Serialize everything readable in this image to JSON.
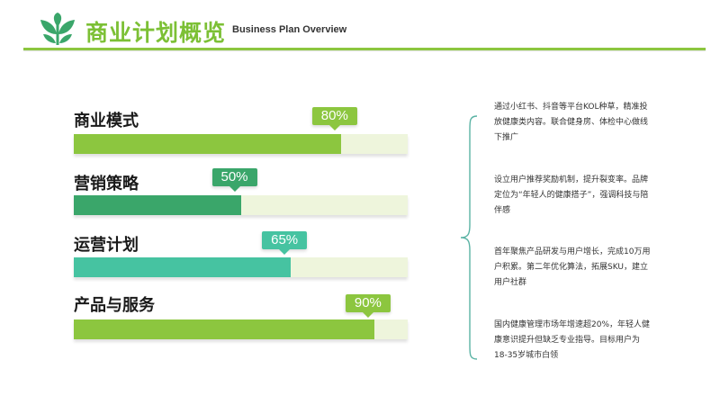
{
  "header": {
    "title_cn": "商业计划概览",
    "title_en": "Business Plan Overview",
    "accent": "#8cc63f",
    "logo_icon": "leaf-plant-icon"
  },
  "rows": [
    {
      "label": "商业模式",
      "value": 80,
      "value_label": "80%",
      "color": "#8cc63f"
    },
    {
      "label": "营销策略",
      "value": 50,
      "value_label": "50%",
      "color": "#3aa66a"
    },
    {
      "label": "运营计划",
      "value": 65,
      "value_label": "65%",
      "color": "#46c3a1"
    },
    {
      "label": "产品与服务",
      "value": 90,
      "value_label": "90%",
      "color": "#8cc63f"
    }
  ],
  "descriptions": [
    "通过小红书、抖音等平台KOL种草，精准投放健康类内容。联合健身房、体检中心做线下推广",
    "设立用户推荐奖励机制，提升裂变率。品牌定位为“年轻人的健康搭子”，强调科技与陪伴感",
    "首年聚焦产品研发与用户增长，完成10万用户积累。第二年优化算法，拓展SKU，建立用户社群",
    "国内健康管理市场年增速超20%，年轻人健康意识提升但缺乏专业指导。目标用户为18-35岁城市白领"
  ]
}
